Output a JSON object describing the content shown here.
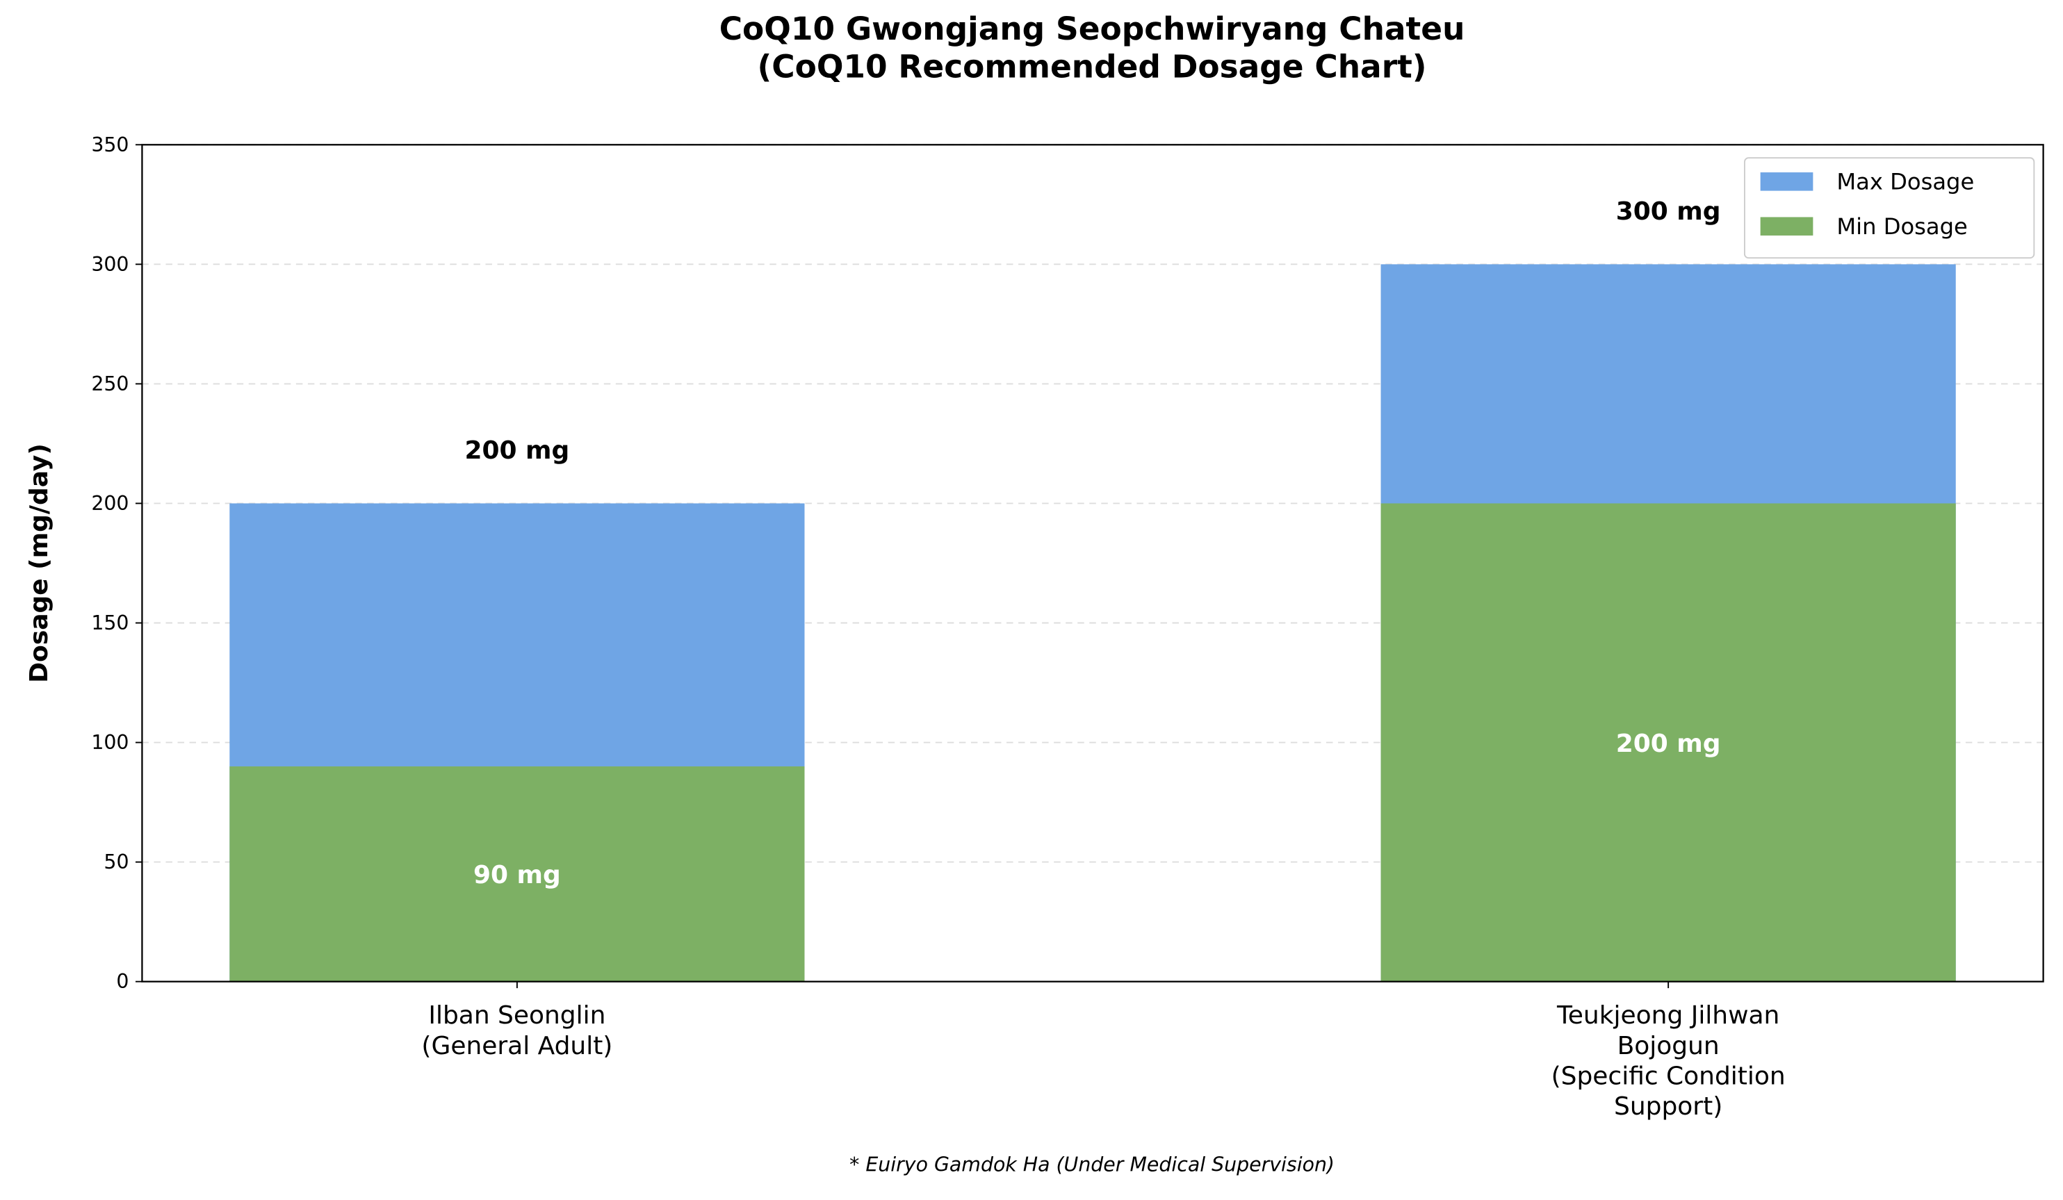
{
  "chart_data": {
    "type": "bar",
    "title": "CoQ10 Gwongjang Seopchwiryang Chateu\n(CoQ10 Recommended Dosage Chart)",
    "ylabel": "Dosage (mg/day)",
    "footnote": "* Euiryo Gamdok Ha (Under Medical Supervision)",
    "categories": [
      "Ilban Seonglin\n(General Adult)",
      "Teukjeong Jilhwan\nBojogun\n(Specific Condition\nSupport)"
    ],
    "series": [
      {
        "name": "Max Dosage",
        "color": "#6fa5e5",
        "values": [
          200,
          300
        ],
        "value_labels": [
          "200 mg",
          "300 mg"
        ]
      },
      {
        "name": "Min Dosage",
        "color": "#7db064",
        "values": [
          90,
          200
        ],
        "value_labels": [
          "90 mg",
          "200 mg"
        ]
      }
    ],
    "ylim": [
      0,
      350
    ],
    "yticks": [
      0,
      50,
      100,
      150,
      200,
      250,
      300,
      350
    ],
    "grid": true,
    "legend": "upper right"
  }
}
